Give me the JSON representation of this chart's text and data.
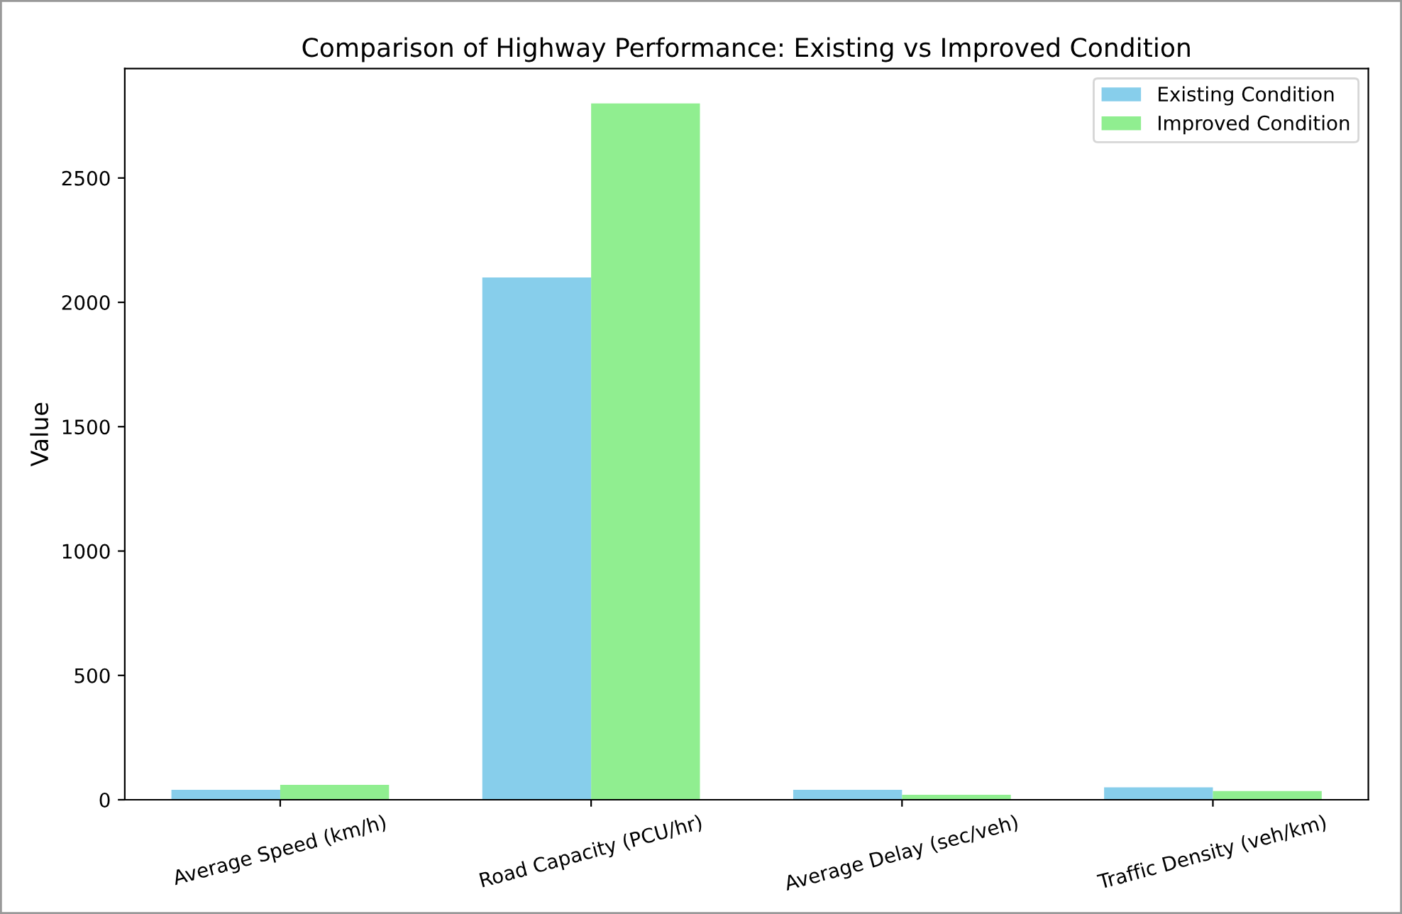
{
  "chart_data": {
    "type": "bar",
    "title": "Comparison of Highway Performance: Existing vs Improved Condition",
    "ylabel": "Value",
    "categories": [
      "Average Speed (km/h)",
      "Road Capacity (PCU/hr)",
      "Average Delay (sec/veh)",
      "Traffic Density (veh/km)"
    ],
    "series": [
      {
        "name": "Existing Condition",
        "color": "#87ceeb",
        "values": [
          40,
          2100,
          40,
          50
        ]
      },
      {
        "name": "Improved Condition",
        "color": "#90ee90",
        "values": [
          60,
          2800,
          20,
          35
        ]
      }
    ],
    "ylim": [
      0,
      2940
    ],
    "yticks": [
      0,
      500,
      1000,
      1500,
      2000,
      2500
    ],
    "grid": false,
    "legend": "top right"
  }
}
